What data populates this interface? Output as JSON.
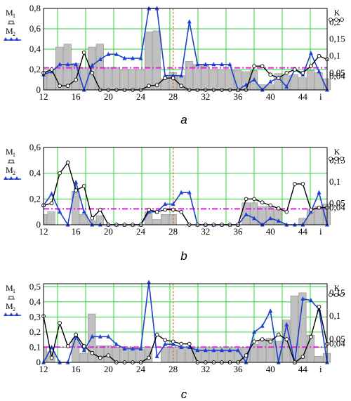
{
  "chart_data": [
    {
      "type": "bar",
      "caption": "a",
      "left_axis": {
        "label_m1": "M",
        "label_m1_sub": "1",
        "label_m2": "M",
        "label_m2_sub": "2",
        "ylim": [
          0,
          0.8
        ],
        "ticks": [
          0,
          0.2,
          0.4,
          0.6,
          0.8
        ],
        "tick_labels": [
          "0",
          "0,2",
          "0,4",
          "0,6",
          "0,8"
        ]
      },
      "right_axis": {
        "label": "K",
        "ylim": [
          0,
          0.24
        ],
        "ticks": [
          0.04,
          0.05,
          0.1,
          0.15,
          0.2
        ],
        "tick_labels": [
          "0,04",
          "0,05",
          "0,1",
          "0,15",
          "0,2"
        ]
      },
      "x_axis": {
        "xlim": [
          12,
          47
        ],
        "ticks": [
          12,
          16,
          20,
          24,
          28,
          32,
          36,
          40,
          44
        ],
        "tick_labels": [
          "12",
          "16",
          "20",
          "24",
          "28",
          "32",
          "36",
          "40",
          "44"
        ],
        "end_label": "i",
        "marker_line": 28
      },
      "threshold_right": 0.065,
      "series": [
        {
          "legend": "M1",
          "kind": "bars",
          "color": "#c0c0c0",
          "x": [
            12,
            13,
            14,
            15,
            16,
            17,
            18,
            19,
            20,
            21,
            22,
            23,
            24,
            25,
            26,
            27,
            28,
            29,
            30,
            31,
            32,
            33,
            34,
            35,
            36,
            37,
            38,
            39,
            40,
            41,
            42,
            43,
            44,
            45,
            46,
            47
          ],
          "values": [
            0.18,
            0.2,
            0.42,
            0.45,
            0.26,
            0.22,
            0.42,
            0.45,
            0.22,
            0.22,
            0.2,
            0.2,
            0.2,
            0.57,
            0.58,
            0.11,
            0.17,
            0.14,
            0.28,
            0.25,
            0.25,
            0.2,
            0.2,
            0.2,
            0.19,
            0.18,
            0.19,
            0.05,
            0.05,
            0.16,
            0.14,
            0.15,
            0.12,
            0.19,
            0.17,
            0.11
          ]
        },
        {
          "legend": "M2",
          "kind": "line",
          "color": "#1f3fcf",
          "marker": "triangle",
          "x": [
            12,
            13,
            14,
            15,
            16,
            17,
            18,
            19,
            20,
            21,
            22,
            23,
            24,
            25,
            26,
            27,
            28,
            29,
            30,
            31,
            32,
            33,
            34,
            35,
            36,
            37,
            38,
            39,
            40,
            41,
            42,
            43,
            44,
            45,
            46,
            47
          ],
          "values": [
            0.15,
            0.18,
            0.25,
            0.25,
            0.25,
            0,
            0.24,
            0.3,
            0.35,
            0.35,
            0.31,
            0.31,
            0.31,
            0.8,
            0.8,
            0.14,
            0.14,
            0.14,
            0.67,
            0.25,
            0.25,
            0.25,
            0.25,
            0.25,
            0,
            0.05,
            0.1,
            0,
            0.08,
            0.12,
            0.03,
            0.2,
            0.15,
            0.36,
            0.18,
            0
          ]
        },
        {
          "legend": "K",
          "kind": "line",
          "color": "#000000",
          "marker": "circle",
          "x": [
            12,
            13,
            14,
            15,
            16,
            17,
            18,
            19,
            20,
            21,
            22,
            23,
            24,
            25,
            26,
            27,
            28,
            29,
            30,
            31,
            32,
            33,
            34,
            35,
            36,
            37,
            38,
            39,
            40,
            41,
            42,
            43,
            44,
            45,
            46,
            47
          ],
          "values": [
            0.05,
            0.06,
            0.012,
            0.012,
            0.03,
            0.11,
            0.05,
            0,
            0,
            0,
            0,
            0,
            0,
            0.012,
            0.014,
            0.035,
            0.035,
            0.012,
            0,
            0,
            0,
            0,
            0,
            0,
            0,
            0,
            0.07,
            0.07,
            0.045,
            0.035,
            0.05,
            0.06,
            0.05,
            0.07,
            0.1,
            0.09
          ]
        }
      ]
    },
    {
      "type": "bar",
      "caption": "b",
      "left_axis": {
        "label_m1": "M",
        "label_m1_sub": "1",
        "label_m2": "M",
        "label_m2_sub": "2",
        "ylim": [
          0,
          0.6
        ],
        "ticks": [
          0,
          0.2,
          0.4,
          0.6
        ],
        "tick_labels": [
          "0",
          "0,2",
          "0,4",
          "0,6"
        ]
      },
      "right_axis": {
        "label": "K",
        "ylim": [
          0,
          0.18
        ],
        "ticks": [
          0.04,
          0.05,
          0.1,
          0.15
        ],
        "tick_labels": [
          "0,04",
          "0,05",
          "0,1",
          "0,15"
        ]
      },
      "x_axis": {
        "xlim": [
          12,
          47
        ],
        "ticks": [
          12,
          16,
          20,
          24,
          28,
          32,
          36,
          40,
          44
        ],
        "tick_labels": [
          "12",
          "16",
          "20",
          "24",
          "28",
          "32",
          "36",
          "40",
          "44"
        ],
        "end_label": "i",
        "marker_line": 28
      },
      "threshold_right": 0.037,
      "series": [
        {
          "legend": "M1",
          "kind": "bars",
          "color": "#c0c0c0",
          "x": [
            12,
            13,
            14,
            15,
            16,
            17,
            18,
            19,
            20,
            21,
            22,
            23,
            24,
            25,
            26,
            27,
            28,
            29,
            30,
            31,
            32,
            33,
            34,
            35,
            36,
            37,
            38,
            39,
            40,
            41,
            42,
            43,
            44,
            45,
            46,
            47
          ],
          "values": [
            0.08,
            0.1,
            0,
            0,
            0.26,
            0.08,
            0.03,
            0.07,
            0,
            0,
            0,
            0,
            0,
            0.1,
            0.04,
            0.08,
            0.08,
            0,
            0,
            0,
            0,
            0,
            0,
            0,
            0,
            0.17,
            0.17,
            0.14,
            0.14,
            0.12,
            0,
            0,
            0.05,
            0.12,
            0.14,
            0.16
          ]
        },
        {
          "legend": "M2",
          "kind": "line",
          "color": "#1f3fcf",
          "marker": "triangle",
          "x": [
            12,
            13,
            14,
            15,
            16,
            17,
            18,
            19,
            20,
            21,
            22,
            23,
            24,
            25,
            26,
            27,
            28,
            29,
            30,
            31,
            32,
            33,
            34,
            35,
            36,
            37,
            38,
            39,
            40,
            41,
            42,
            43,
            44,
            45,
            46,
            47
          ],
          "values": [
            0.15,
            0.24,
            0.1,
            0,
            0.33,
            0.1,
            0,
            0,
            0,
            0,
            0,
            0,
            0,
            0.1,
            0.1,
            0.16,
            0.16,
            0.25,
            0.25,
            0,
            0,
            0,
            0,
            0,
            0,
            0.08,
            0.05,
            0,
            0.05,
            0.03,
            0,
            0,
            0,
            0.1,
            0.25,
            0
          ]
        },
        {
          "legend": "K",
          "kind": "line",
          "color": "#000000",
          "marker": "circle",
          "x": [
            12,
            13,
            14,
            15,
            16,
            17,
            18,
            19,
            20,
            21,
            22,
            23,
            24,
            25,
            26,
            27,
            28,
            29,
            30,
            31,
            32,
            33,
            34,
            35,
            36,
            37,
            38,
            39,
            40,
            41,
            42,
            43,
            44,
            45,
            46,
            47
          ],
          "values": [
            0.045,
            0.05,
            0.12,
            0.145,
            0.08,
            0.09,
            0.015,
            0.035,
            0,
            0,
            0,
            0,
            0,
            0.035,
            0.03,
            0.035,
            0.035,
            0.03,
            0,
            0,
            0,
            0,
            0,
            0,
            0,
            0.06,
            0.06,
            0.052,
            0.045,
            0.038,
            0.03,
            0.095,
            0.095,
            0.035,
            0.04,
            0.04
          ]
        }
      ]
    },
    {
      "type": "bar",
      "caption": "c",
      "left_axis": {
        "label_m1": "M",
        "label_m1_sub": "1",
        "label_m2": "M",
        "label_m2_sub": "2",
        "ylim": [
          0,
          0.52
        ],
        "ticks": [
          0,
          0.1,
          0.2,
          0.3,
          0.4,
          0.5
        ],
        "tick_labels": [
          "0",
          "0,1",
          "0,2",
          "0,3",
          "0,4",
          "0,5"
        ]
      },
      "right_axis": {
        "label": "K",
        "ylim": [
          0,
          0.17
        ],
        "ticks": [
          0.04,
          0.05,
          0.1,
          0.15
        ],
        "tick_labels": [
          "0,04",
          "0,05",
          "0,1",
          "0,15"
        ]
      },
      "x_axis": {
        "xlim": [
          12,
          47
        ],
        "ticks": [
          12,
          16,
          20,
          24,
          28,
          32,
          36,
          40,
          44
        ],
        "tick_labels": [
          "12",
          "16",
          "20",
          "24",
          "28",
          "32",
          "36",
          "40",
          "44"
        ],
        "end_label": "i",
        "marker_line": 28
      },
      "threshold_right": 0.033,
      "series": [
        {
          "legend": "M1",
          "kind": "bars",
          "color": "#c0c0c0",
          "x": [
            12,
            13,
            14,
            15,
            16,
            17,
            18,
            19,
            20,
            21,
            22,
            23,
            24,
            25,
            26,
            27,
            28,
            29,
            30,
            31,
            32,
            33,
            34,
            35,
            36,
            37,
            38,
            39,
            40,
            41,
            42,
            43,
            44,
            45,
            46,
            47
          ],
          "values": [
            0.1,
            0.07,
            0,
            0,
            0.15,
            0.06,
            0.32,
            0.11,
            0.11,
            0.1,
            0.09,
            0.09,
            0.09,
            0.09,
            0,
            0.09,
            0.09,
            0.09,
            0.09,
            0.09,
            0.09,
            0.09,
            0.09,
            0.09,
            0.09,
            0.1,
            0.12,
            0.14,
            0.16,
            0.14,
            0.28,
            0.44,
            0.46,
            0.18,
            0.04,
            0.06
          ]
        },
        {
          "legend": "M2",
          "kind": "line",
          "color": "#1f3fcf",
          "marker": "triangle",
          "x": [
            12,
            13,
            14,
            15,
            16,
            17,
            18,
            19,
            20,
            21,
            22,
            23,
            24,
            25,
            26,
            27,
            28,
            29,
            30,
            31,
            32,
            33,
            34,
            35,
            36,
            37,
            38,
            39,
            40,
            41,
            42,
            43,
            44,
            45,
            46,
            47
          ],
          "values": [
            0,
            0.1,
            0,
            0,
            0.17,
            0.08,
            0.17,
            0.17,
            0.17,
            0.12,
            0.09,
            0.09,
            0.09,
            0.53,
            0.04,
            0.12,
            0.12,
            0.1,
            0.1,
            0.08,
            0.08,
            0.08,
            0.08,
            0.08,
            0.08,
            0,
            0.2,
            0.24,
            0.34,
            0,
            0.25,
            0,
            0.42,
            0.41,
            0.35,
            0
          ]
        },
        {
          "legend": "K",
          "kind": "line",
          "color": "#000000",
          "marker": "circle",
          "x": [
            12,
            13,
            14,
            15,
            16,
            17,
            18,
            19,
            20,
            21,
            22,
            23,
            24,
            25,
            26,
            27,
            28,
            29,
            30,
            31,
            32,
            33,
            34,
            35,
            36,
            37,
            38,
            39,
            40,
            41,
            42,
            43,
            44,
            45,
            46,
            47
          ],
          "values": [
            0.1,
            0.01,
            0.085,
            0.035,
            0.06,
            0.035,
            0.02,
            0.01,
            0.015,
            0,
            0,
            0,
            0,
            0.01,
            0.06,
            0.048,
            0.045,
            0.04,
            0.04,
            0,
            0,
            0,
            0,
            0,
            0,
            0.015,
            0.045,
            0.05,
            0.045,
            0.06,
            0.05,
            0,
            0.012,
            0.055,
            0.12,
            0.04
          ]
        }
      ]
    }
  ]
}
